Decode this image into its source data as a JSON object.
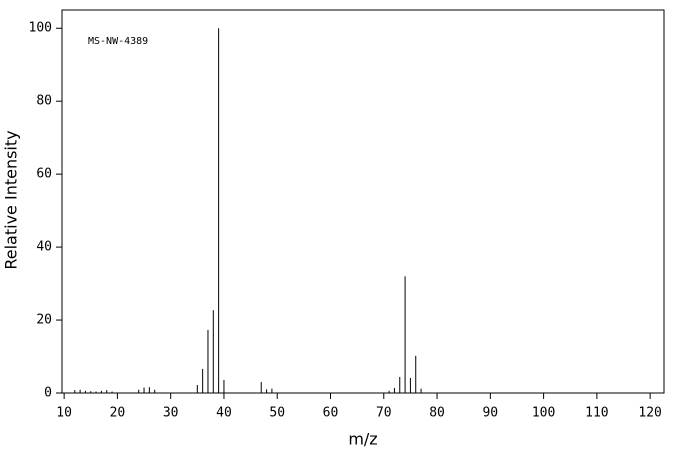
{
  "chart_data": {
    "type": "stem",
    "annotation": "MS-NW-4389",
    "xlabel": "m/z",
    "ylabel": "Relative Intensity",
    "x": [
      12,
      13,
      14,
      15,
      16,
      17,
      18,
      19,
      24,
      25,
      26,
      27,
      35,
      36,
      37,
      38,
      39,
      40,
      47,
      48,
      49,
      71,
      72,
      73,
      74,
      75,
      76,
      77
    ],
    "values": [
      0.8,
      0.9,
      0.6,
      0.5,
      0.4,
      0.6,
      0.8,
      0.4,
      0.9,
      1.5,
      1.6,
      0.9,
      2.2,
      6.6,
      17.3,
      22.7,
      100,
      3.6,
      3,
      1,
      1.2,
      0.6,
      1.4,
      4.4,
      32,
      4.1,
      10.2,
      1.2
    ],
    "color": "#000000",
    "xlim": [
      9.6,
      122.6
    ],
    "xticks": [
      10,
      20,
      30,
      40,
      50,
      60,
      70,
      80,
      90,
      100,
      110,
      120
    ],
    "ylim": [
      0,
      105
    ],
    "yticks": [
      0,
      20,
      40,
      60,
      80,
      100
    ]
  }
}
